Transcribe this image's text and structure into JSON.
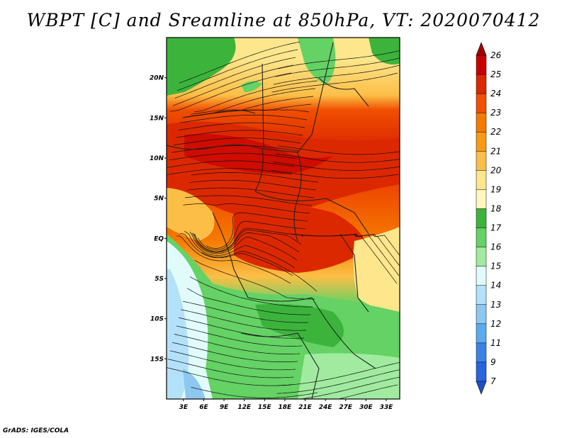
{
  "title": "WBPT [C] and Sreamline at 850hPa, VT: 2020070412",
  "credit": "GrADS: IGES/COLA",
  "lat_labels": [
    {
      "lat": 20,
      "text": "20N"
    },
    {
      "lat": 15,
      "text": "15N"
    },
    {
      "lat": 10,
      "text": "10N"
    },
    {
      "lat": 5,
      "text": "5N"
    },
    {
      "lat": 0,
      "text": "EQ"
    },
    {
      "lat": -5,
      "text": "5S"
    },
    {
      "lat": -10,
      "text": "10S"
    },
    {
      "lat": -15,
      "text": "15S"
    }
  ],
  "lon_labels": [
    {
      "lon": 3,
      "text": "3E"
    },
    {
      "lon": 6,
      "text": "6E"
    },
    {
      "lon": 9,
      "text": "9E"
    },
    {
      "lon": 12,
      "text": "12E"
    },
    {
      "lon": 15,
      "text": "15E"
    },
    {
      "lon": 18,
      "text": "18E"
    },
    {
      "lon": 21,
      "text": "21E"
    },
    {
      "lon": 24,
      "text": "24E"
    },
    {
      "lon": 27,
      "text": "27E"
    },
    {
      "lon": 30,
      "text": "30E"
    },
    {
      "lon": 33,
      "text": "33E"
    }
  ],
  "map_extent": {
    "lon_min": 0.5,
    "lon_max": 35,
    "lat_min": -20,
    "lat_max": 25
  },
  "colorbar": {
    "labels": [
      "26",
      "25",
      "24",
      "23",
      "22",
      "21",
      "20",
      "19",
      "18",
      "17",
      "16",
      "15",
      "14",
      "13",
      "12",
      "11",
      "9",
      "7"
    ],
    "colors": [
      "#a50000",
      "#c80000",
      "#dc2800",
      "#f05000",
      "#f57a00",
      "#fa9a14",
      "#fcbe46",
      "#fde68c",
      "#fff6be",
      "#3cb43c",
      "#64d264",
      "#a0eba0",
      "#e1fbfb",
      "#b4e1fa",
      "#8cc8f0",
      "#5aaaf0",
      "#3c82e6",
      "#2864dc",
      "#1e50c8"
    ]
  }
}
